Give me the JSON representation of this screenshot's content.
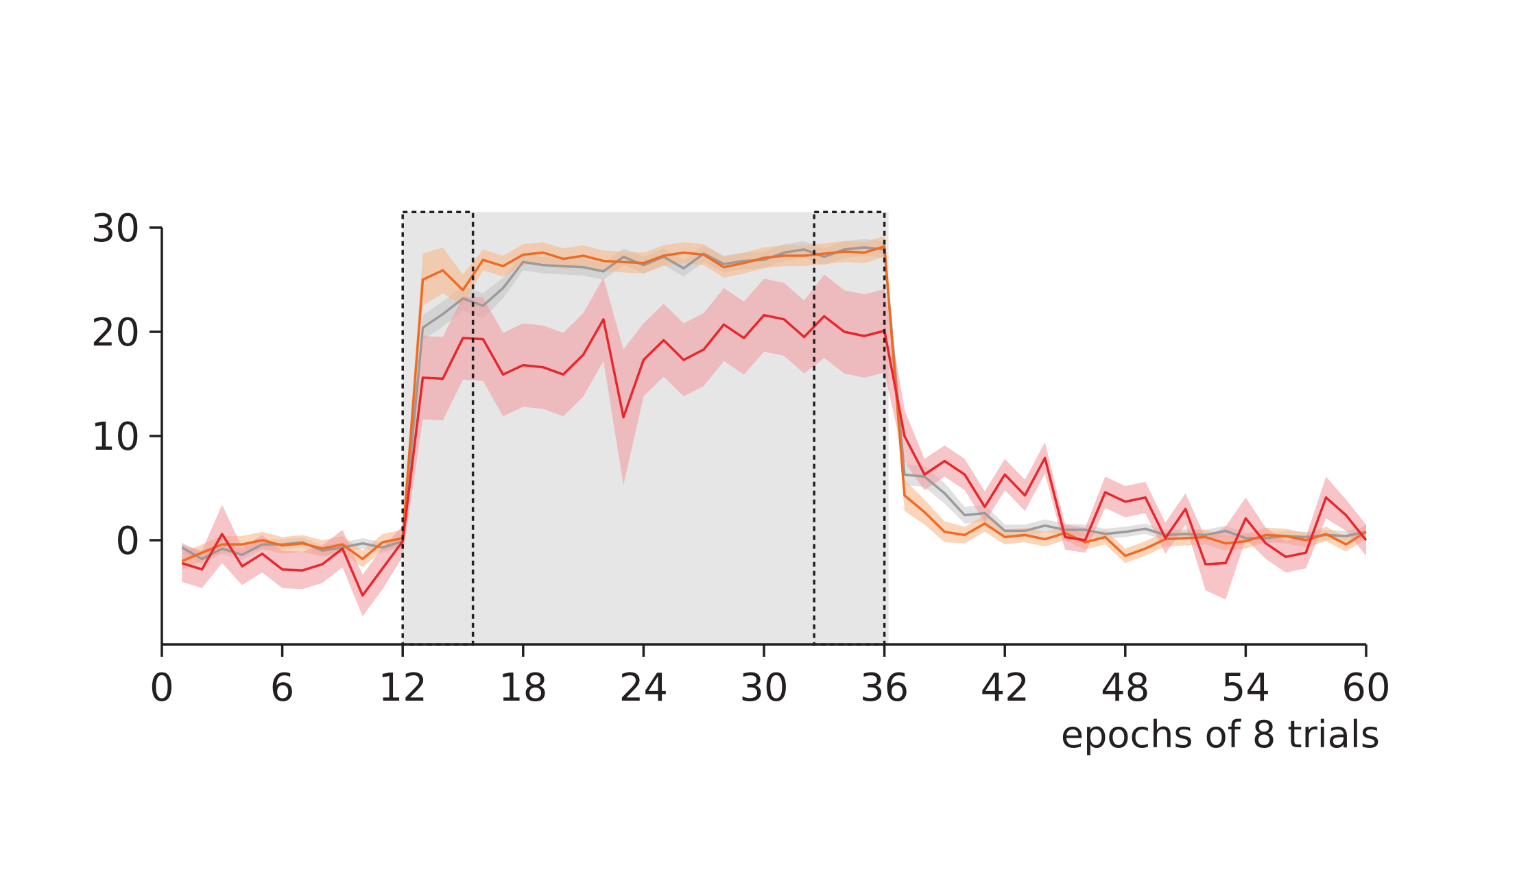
{
  "chart_data": {
    "type": "line",
    "title": "",
    "xlabel": "epochs of 8 trials",
    "ylabel": "",
    "xlim": [
      0,
      60
    ],
    "ylim": [
      -10,
      30
    ],
    "xticks": [
      0,
      6,
      12,
      18,
      24,
      30,
      36,
      42,
      48,
      54,
      60
    ],
    "yticks": [
      0,
      10,
      20,
      30
    ],
    "grid": false,
    "legend": "none",
    "shaded_region": {
      "x": [
        12,
        36
      ],
      "color": "#e6e6e6"
    },
    "dotted_boxes": [
      {
        "x": [
          12,
          15.5
        ],
        "y": [
          -10,
          31.5
        ]
      },
      {
        "x": [
          32.5,
          36
        ],
        "y": [
          -10,
          31.5
        ]
      }
    ],
    "x": [
      1,
      2,
      3,
      4,
      5,
      6,
      7,
      8,
      9,
      10,
      11,
      12,
      13,
      14,
      15,
      16,
      17,
      18,
      19,
      20,
      21,
      22,
      23,
      24,
      25,
      26,
      27,
      28,
      29,
      30,
      31,
      32,
      33,
      34,
      35,
      36,
      37,
      38,
      39,
      40,
      41,
      42,
      43,
      44,
      45,
      46,
      47,
      48,
      49,
      50,
      51,
      52,
      53,
      54,
      55,
      56,
      57,
      58,
      59,
      60
    ],
    "series": [
      {
        "color": "#9a9a9a",
        "band_color": "#bdbdbd",
        "values": [
          -0.7,
          -1.8,
          -0.8,
          -1.4,
          -0.4,
          -0.4,
          -0.2,
          -1.0,
          -0.7,
          -0.3,
          -0.7,
          -0.1,
          20.4,
          21.7,
          23.2,
          22.5,
          24.2,
          26.7,
          26.4,
          26.3,
          26.2,
          25.8,
          27.2,
          26.4,
          27.2,
          26.1,
          27.5,
          26.5,
          26.8,
          26.9,
          27.6,
          27.9,
          27.2,
          27.9,
          28.1,
          27.9,
          6.3,
          6.1,
          4.5,
          2.4,
          2.6,
          0.9,
          0.9,
          1.4,
          1.0,
          1.0,
          0.6,
          0.8,
          1.1,
          0.5,
          0.6,
          0.5,
          0.9,
          0.2,
          0.2,
          0.4,
          0.3,
          0.5,
          0.4,
          0.8
        ],
        "band": [
          0.5,
          0.5,
          0.5,
          0.5,
          0.5,
          0.5,
          0.5,
          0.5,
          0.5,
          0.5,
          0.5,
          0.5,
          1.2,
          1.2,
          1.2,
          1.2,
          1.0,
          0.8,
          0.8,
          0.8,
          0.8,
          0.8,
          0.8,
          0.8,
          0.8,
          0.8,
          0.8,
          0.8,
          0.8,
          0.8,
          0.8,
          0.8,
          0.8,
          0.8,
          0.8,
          0.8,
          1.0,
          1.0,
          1.0,
          0.8,
          0.8,
          0.6,
          0.6,
          0.6,
          0.6,
          0.5,
          0.5,
          0.5,
          0.5,
          0.5,
          0.5,
          0.5,
          0.5,
          0.5,
          0.5,
          0.5,
          0.5,
          0.5,
          0.5,
          0.5
        ]
      },
      {
        "color": "#ef6b23",
        "band_color": "#f6b98c",
        "values": [
          -2.0,
          -1.2,
          -0.4,
          -0.4,
          0.0,
          -0.5,
          -0.3,
          -0.8,
          -0.4,
          -1.8,
          -0.2,
          0.2,
          25.0,
          25.9,
          24.0,
          26.9,
          26.3,
          27.4,
          27.6,
          27.0,
          27.3,
          26.8,
          26.7,
          26.6,
          27.3,
          27.6,
          27.4,
          26.2,
          26.6,
          27.1,
          27.3,
          27.3,
          27.5,
          27.7,
          27.6,
          28.2,
          4.3,
          2.7,
          0.8,
          0.5,
          1.6,
          0.3,
          0.5,
          0.1,
          0.7,
          -0.2,
          0.3,
          -1.5,
          -0.8,
          0.1,
          0.2,
          0.3,
          -0.3,
          -0.1,
          0.5,
          0.4,
          0.0,
          0.6,
          -0.4,
          0.8
        ],
        "band": [
          0.8,
          0.8,
          0.8,
          0.8,
          0.8,
          0.8,
          0.8,
          0.8,
          0.8,
          0.8,
          0.8,
          0.8,
          2.5,
          2.2,
          1.5,
          1.0,
          1.0,
          1.0,
          1.0,
          1.0,
          1.0,
          1.0,
          1.0,
          1.0,
          1.0,
          1.0,
          1.0,
          1.0,
          1.0,
          1.0,
          1.0,
          1.0,
          1.0,
          1.0,
          1.0,
          1.0,
          1.5,
          1.2,
          1.0,
          0.8,
          0.8,
          0.7,
          0.7,
          0.7,
          0.7,
          0.7,
          0.7,
          0.7,
          0.7,
          0.7,
          0.7,
          0.7,
          0.7,
          0.7,
          0.7,
          0.7,
          0.7,
          0.7,
          0.7,
          0.7
        ]
      },
      {
        "color": "#e8262c",
        "band_color": "#f29da2",
        "values": [
          -2.2,
          -2.8,
          0.6,
          -2.5,
          -1.3,
          -2.8,
          -2.9,
          -2.3,
          -0.8,
          -5.3,
          -2.7,
          -0.1,
          15.6,
          15.5,
          19.4,
          19.3,
          15.9,
          16.8,
          16.6,
          15.9,
          17.8,
          21.2,
          11.8,
          17.3,
          19.2,
          17.3,
          18.3,
          20.7,
          19.4,
          21.6,
          21.2,
          19.5,
          21.5,
          20.0,
          19.6,
          20.1,
          10.0,
          6.3,
          7.6,
          6.3,
          3.2,
          6.3,
          4.3,
          7.9,
          0.3,
          0.0,
          4.6,
          3.7,
          4.1,
          0.2,
          3.0,
          -2.3,
          -2.2,
          2.1,
          -0.3,
          -1.6,
          -1.2,
          4.1,
          2.4,
          0.0
        ],
        "band": [
          1.8,
          1.8,
          2.8,
          1.8,
          1.8,
          1.8,
          1.8,
          1.8,
          1.8,
          2.0,
          2.0,
          1.5,
          4.0,
          4.0,
          4.0,
          4.0,
          4.0,
          4.0,
          4.0,
          4.0,
          4.0,
          4.0,
          6.5,
          3.5,
          3.5,
          3.5,
          3.5,
          3.5,
          3.5,
          3.5,
          3.5,
          3.5,
          4.0,
          4.0,
          4.0,
          4.0,
          2.5,
          1.5,
          1.5,
          1.5,
          1.5,
          1.5,
          1.5,
          1.5,
          1.2,
          1.2,
          1.5,
          1.5,
          1.5,
          1.5,
          1.5,
          2.5,
          3.5,
          2.0,
          1.5,
          1.5,
          1.5,
          2.0,
          1.5,
          1.5
        ]
      }
    ]
  }
}
